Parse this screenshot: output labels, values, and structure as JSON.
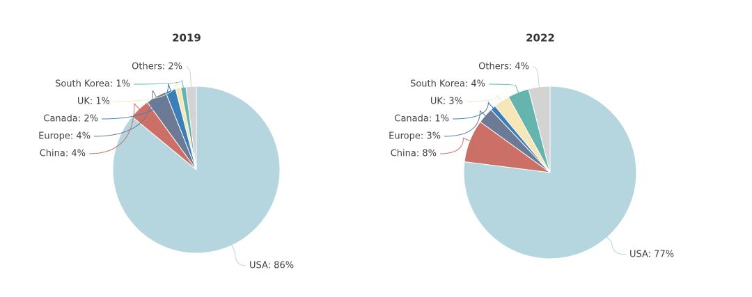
{
  "chart_data": [
    {
      "type": "pie",
      "title": "2019",
      "values": [
        86,
        4,
        4,
        2,
        1,
        1,
        2
      ],
      "value_labels": [
        "USA: 86%",
        "China: 4%",
        "Europe: 4%",
        "Canada: 2%",
        "UK: 1%",
        "South Korea: 1%",
        "Others: 2%"
      ],
      "colors": [
        "#b5d6df",
        "#cc7067",
        "#6c7a96",
        "#3c7fb8",
        "#f7e6b7",
        "#65b5ae",
        "#d3d3d3"
      ]
    },
    {
      "type": "pie",
      "title": "2022",
      "values": [
        77,
        8,
        3,
        1,
        3,
        4,
        4
      ],
      "value_labels": [
        "USA: 77%",
        "China: 8%",
        "Europe: 3%",
        "Canada: 1%",
        "UK: 3%",
        "South Korea: 4%",
        "Others: 4%"
      ],
      "colors": [
        "#b5d6df",
        "#cc7067",
        "#6c7a96",
        "#3c7fb8",
        "#f7e6b7",
        "#65b5ae",
        "#d3d3d3"
      ]
    }
  ]
}
